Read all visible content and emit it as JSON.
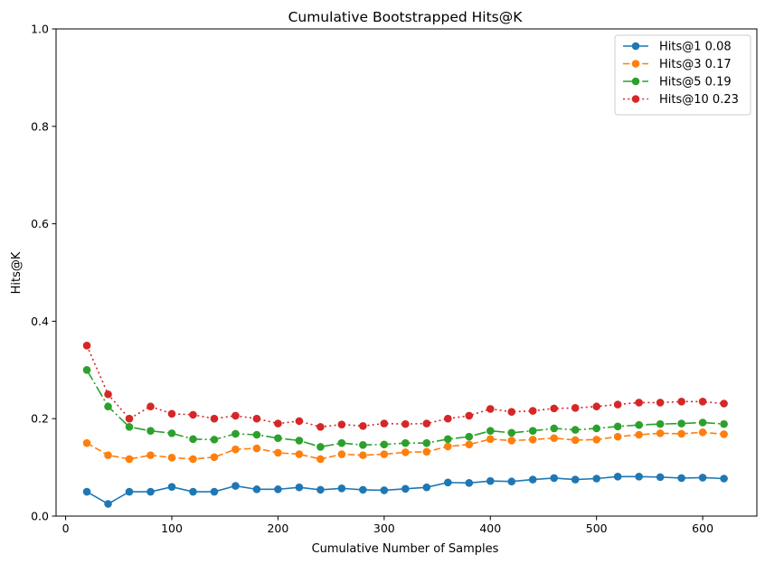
{
  "chart_data": {
    "type": "line",
    "title": "Cumulative Bootstrapped Hits@K",
    "xlabel": "Cumulative Number of Samples",
    "ylabel": "Hits@K",
    "xlim": [
      -9,
      651
    ],
    "ylim": [
      0,
      1
    ],
    "xticks": [
      0,
      100,
      200,
      300,
      400,
      500,
      600
    ],
    "yticks": [
      0.0,
      0.2,
      0.4,
      0.6,
      0.8,
      1.0
    ],
    "ytick_labels": [
      "0.0",
      "0.2",
      "0.4",
      "0.6",
      "0.8",
      "1.0"
    ],
    "grid": false,
    "legend_position": "top-right",
    "x": [
      20,
      40,
      60,
      80,
      100,
      120,
      140,
      160,
      180,
      200,
      220,
      240,
      260,
      280,
      300,
      320,
      340,
      360,
      380,
      400,
      420,
      440,
      460,
      480,
      500,
      520,
      540,
      560,
      580,
      600,
      620
    ],
    "series": [
      {
        "name": "Hits@1 0.08",
        "color": "#1f77b4",
        "linestyle": "solid",
        "values": [
          0.05,
          0.025,
          0.05,
          0.05,
          0.06,
          0.05,
          0.05,
          0.062,
          0.055,
          0.055,
          0.059,
          0.054,
          0.057,
          0.054,
          0.053,
          0.056,
          0.059,
          0.069,
          0.068,
          0.072,
          0.071,
          0.075,
          0.078,
          0.075,
          0.077,
          0.081,
          0.081,
          0.08,
          0.078,
          0.079,
          0.077
        ]
      },
      {
        "name": "Hits@3 0.17",
        "color": "#ff7f0e",
        "linestyle": "dashed",
        "values": [
          0.15,
          0.125,
          0.117,
          0.125,
          0.12,
          0.117,
          0.121,
          0.137,
          0.139,
          0.13,
          0.127,
          0.117,
          0.127,
          0.125,
          0.127,
          0.131,
          0.132,
          0.143,
          0.147,
          0.158,
          0.155,
          0.157,
          0.16,
          0.156,
          0.157,
          0.163,
          0.167,
          0.17,
          0.169,
          0.172,
          0.168
        ]
      },
      {
        "name": "Hits@5 0.19",
        "color": "#2ca02c",
        "linestyle": "dashdot",
        "values": [
          0.3,
          0.225,
          0.183,
          0.175,
          0.17,
          0.158,
          0.157,
          0.169,
          0.167,
          0.16,
          0.155,
          0.142,
          0.15,
          0.146,
          0.147,
          0.15,
          0.15,
          0.158,
          0.163,
          0.175,
          0.171,
          0.175,
          0.18,
          0.177,
          0.18,
          0.184,
          0.187,
          0.189,
          0.19,
          0.192,
          0.189
        ]
      },
      {
        "name": "Hits@10 0.23",
        "color": "#d62728",
        "linestyle": "dotted",
        "values": [
          0.35,
          0.25,
          0.2,
          0.225,
          0.21,
          0.208,
          0.2,
          0.206,
          0.2,
          0.19,
          0.195,
          0.183,
          0.188,
          0.185,
          0.19,
          0.189,
          0.19,
          0.2,
          0.206,
          0.22,
          0.214,
          0.216,
          0.221,
          0.222,
          0.225,
          0.229,
          0.233,
          0.233,
          0.235,
          0.235,
          0.231
        ]
      }
    ]
  }
}
